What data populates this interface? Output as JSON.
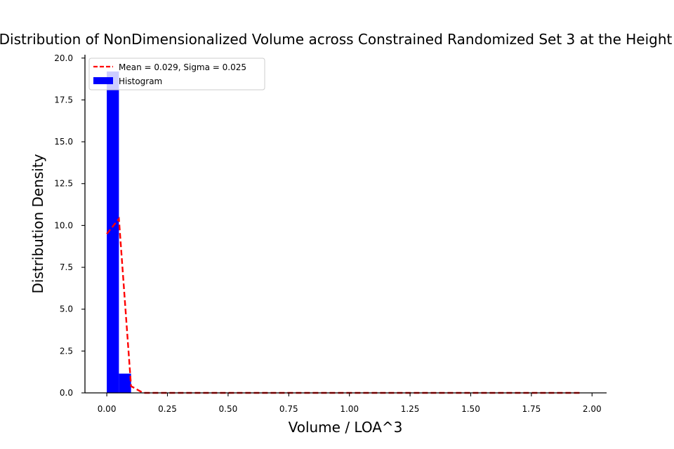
{
  "chart_data": {
    "type": "bar",
    "title": "Distribution of NonDimensionalized Volume across Constrained Randomized Set 3 at the Height",
    "xlabel": "Volume / LOA^3",
    "ylabel": "Distribution Density",
    "xlim": [
      -0.09,
      2.06
    ],
    "ylim": [
      0,
      20.2
    ],
    "x_ticks": [
      0.0,
      0.25,
      0.5,
      0.75,
      1.0,
      1.25,
      1.5,
      1.75,
      2.0
    ],
    "x_tick_labels": [
      "0.00",
      "0.25",
      "0.50",
      "0.75",
      "1.00",
      "1.25",
      "1.50",
      "1.75",
      "2.00"
    ],
    "y_ticks": [
      0.0,
      2.5,
      5.0,
      7.5,
      10.0,
      12.5,
      15.0,
      17.5,
      20.0
    ],
    "y_tick_labels": [
      "0.0",
      "2.5",
      "5.0",
      "7.5",
      "10.0",
      "12.5",
      "15.0",
      "17.5",
      "20.0"
    ],
    "grid": false,
    "legend_position": "top-left",
    "histogram": {
      "name": "Histogram",
      "color": "#0000ff",
      "bin_edges": [
        0.0,
        0.05,
        0.1,
        0.15,
        0.2,
        0.25,
        0.3,
        0.35,
        0.4,
        0.45,
        0.5,
        0.55,
        0.6,
        0.65,
        0.7,
        0.75,
        0.8,
        0.85,
        0.9,
        0.95,
        1.0,
        1.05,
        1.1,
        1.15,
        1.2,
        1.25,
        1.3,
        1.35,
        1.4,
        1.45,
        1.5,
        1.55,
        1.6,
        1.65,
        1.7,
        1.75,
        1.8,
        1.85,
        1.9,
        1.95,
        2.0
      ],
      "densities": [
        19.2,
        1.15,
        0,
        0,
        0,
        0,
        0,
        0,
        0,
        0,
        0,
        0,
        0,
        0,
        0,
        0,
        0,
        0,
        0,
        0,
        0,
        0,
        0,
        0,
        0,
        0,
        0,
        0,
        0,
        0,
        0,
        0,
        0,
        0,
        0,
        0,
        0,
        0,
        0,
        0
      ]
    },
    "fit_line": {
      "name": "Mean = 0.029, Sigma = 0.025",
      "color": "#ff0000",
      "style": "dashed",
      "x": [
        0.0,
        0.05,
        0.1,
        0.15,
        0.2,
        0.25,
        0.5,
        0.75,
        1.0,
        1.25,
        1.5,
        1.75,
        1.95
      ],
      "y": [
        9.5,
        10.4,
        0.4,
        0.0,
        0.0,
        0.0,
        0.0,
        0.0,
        0.0,
        0.0,
        0.0,
        0.0,
        0.0
      ]
    }
  }
}
